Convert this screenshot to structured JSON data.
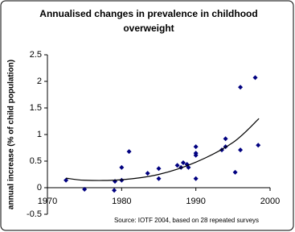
{
  "chart_data": {
    "type": "scatter",
    "title": "Annualised changes in prevalence in childhood overweight",
    "y_label": "annual increase (% of child population)",
    "annotation": "Source: IOTF 2004, based on 28 repeated surveys",
    "x": [
      1972.5,
      1975,
      1979,
      1979.1,
      1980,
      1980,
      1981,
      1983.5,
      1985,
      1985,
      1987.5,
      1988,
      1988.3,
      1988.8,
      1989,
      1990,
      1990,
      1990,
      1990,
      1993.5,
      1994,
      1994,
      1995.3,
      1996,
      1996,
      1998,
      1998.4
    ],
    "y": [
      0.14,
      -0.03,
      -0.05,
      0.12,
      0.14,
      0.38,
      0.68,
      0.27,
      0.36,
      0.17,
      0.42,
      0.38,
      0.47,
      0.44,
      0.38,
      0.61,
      0.65,
      0.77,
      0.17,
      0.71,
      0.92,
      0.77,
      0.29,
      0.71,
      1.89,
      2.07,
      0.8
    ],
    "color": "#000080",
    "trend": {
      "x": [
        1972.5,
        1975,
        1980,
        1985,
        1990,
        1995,
        1998.5
      ],
      "y": [
        0.18,
        0.14,
        0.15,
        0.25,
        0.48,
        0.85,
        1.3
      ],
      "color": "#000000"
    },
    "xlim": [
      1970,
      2000
    ],
    "xticks": [
      1970,
      1980,
      1990,
      2000
    ],
    "ylim": [
      -0.5,
      2.5
    ],
    "yticks": [
      -0.5,
      0,
      0.5,
      1,
      1.5,
      2,
      2.5
    ]
  }
}
